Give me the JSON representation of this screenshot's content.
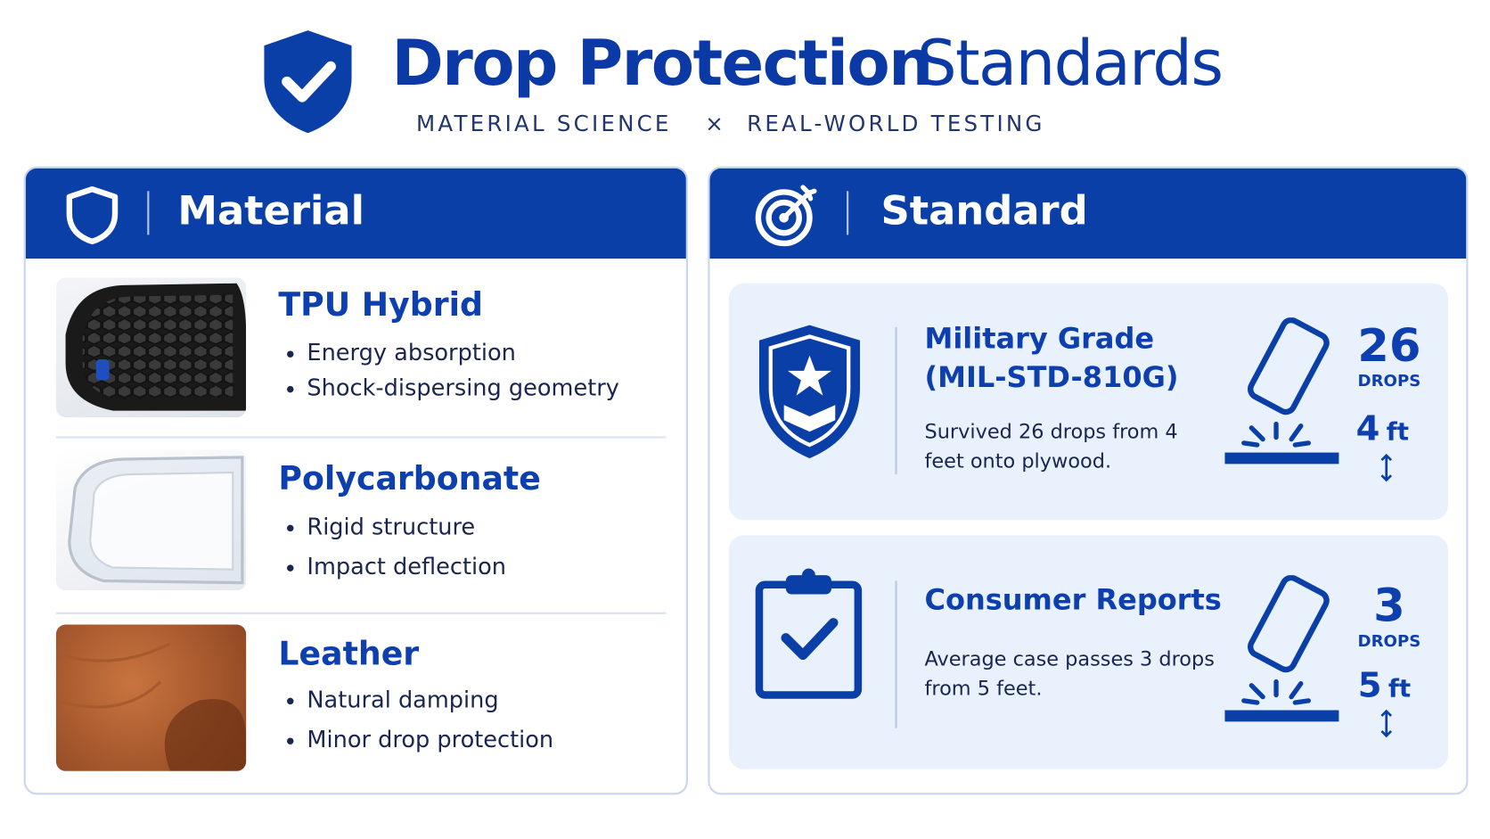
{
  "header": {
    "title_bold": "Drop Protection",
    "title_light": "Standards",
    "subtitle_left": "MATERIAL SCIENCE",
    "subtitle_separator": "×",
    "subtitle_right": "REAL-WORLD TESTING"
  },
  "material": {
    "heading": "Material",
    "items": [
      {
        "name": "TPU Hybrid",
        "bullets": [
          "Energy absorption",
          "Shock-dispersing geometry"
        ]
      },
      {
        "name": "Polycarbonate",
        "bullets": [
          "Rigid structure",
          "Impact deflection"
        ]
      },
      {
        "name": "Leather",
        "bullets": [
          "Natural damping",
          "Minor drop protection"
        ]
      }
    ]
  },
  "standard": {
    "heading": "Standard",
    "items": [
      {
        "name": "Military Grade",
        "code": "(MIL-STD-810G)",
        "description": "Survived 26 drops from 4 feet onto plywood.",
        "drops": 26,
        "drops_label": "DROPS",
        "height": 4,
        "height_unit": "ft"
      },
      {
        "name": "Consumer Reports",
        "description": "Average case passes 3 drops from 5 feet.",
        "drops": 3,
        "drops_label": "DROPS",
        "height": 5,
        "height_unit": "ft"
      }
    ]
  }
}
